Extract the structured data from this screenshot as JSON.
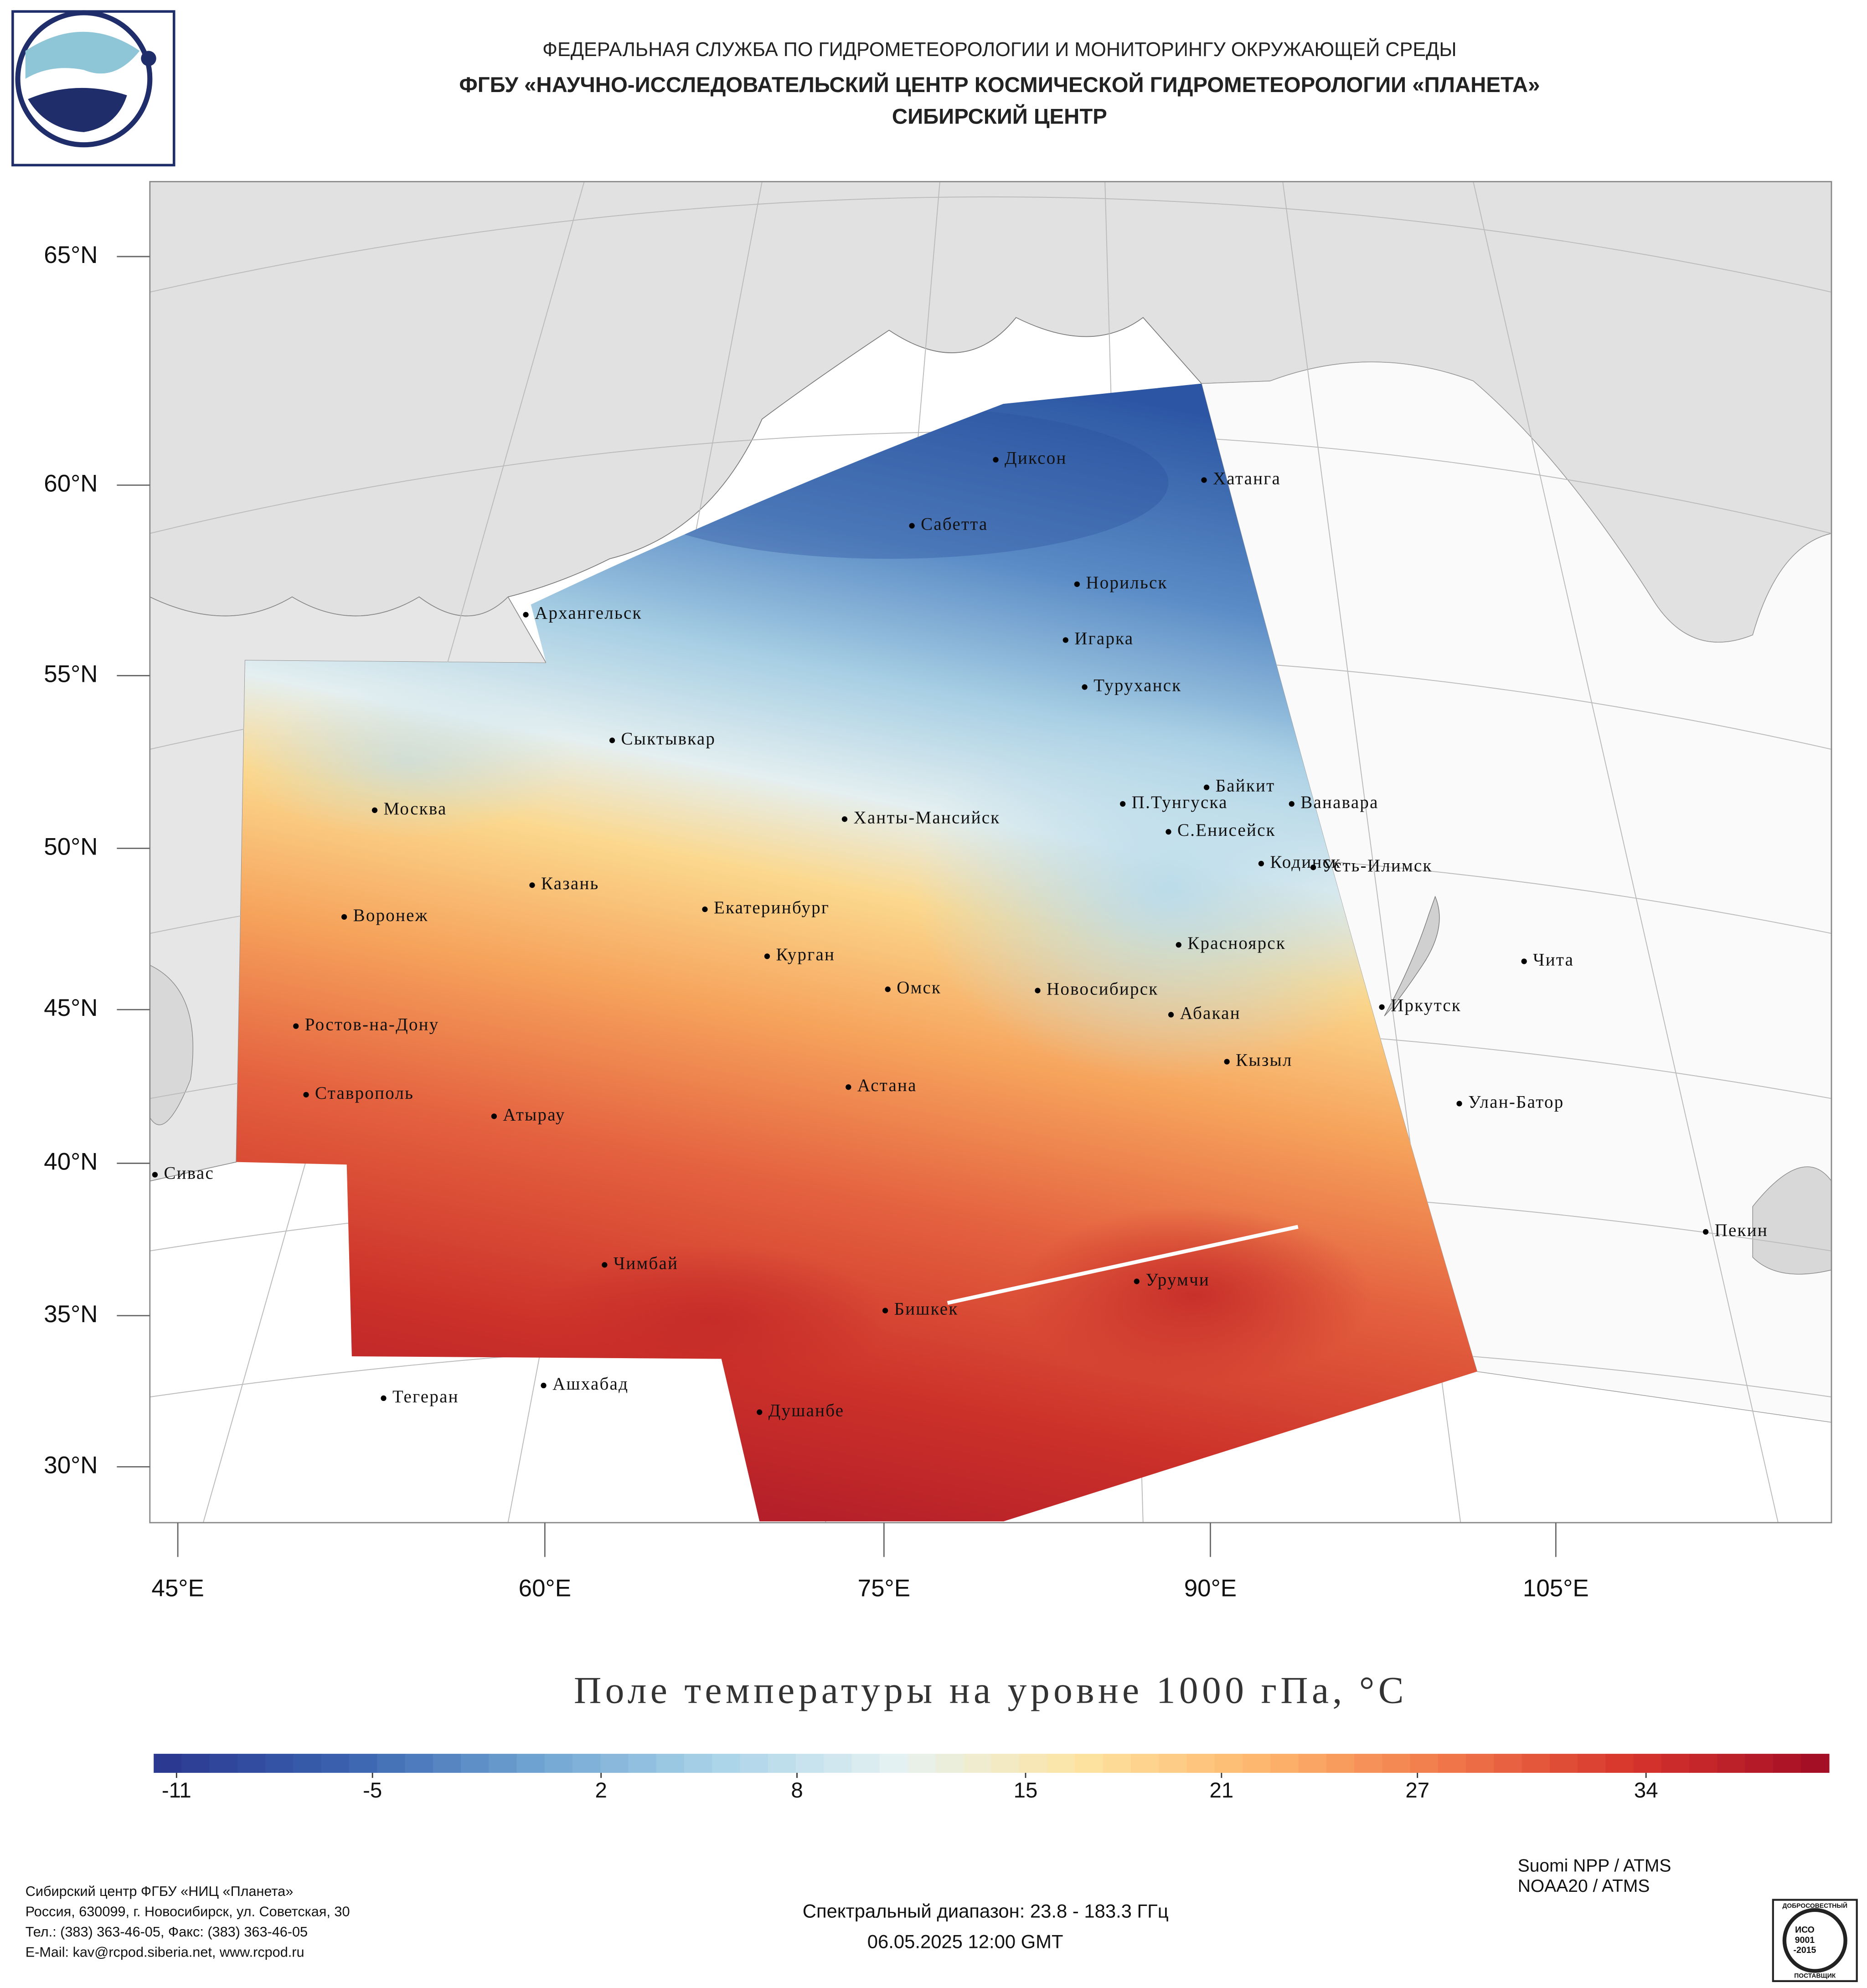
{
  "header": {
    "lines": [
      "ФЕДЕРАЛЬНАЯ СЛУЖБА ПО ГИДРОМЕТЕОРОЛОГИИ И МОНИТОРИНГУ ОКРУЖАЮЩЕЙ СРЕДЫ",
      "ФГБУ «НАУЧНО-ИССЛЕДОВАТЕЛЬСКИЙ ЦЕНТР КОСМИЧЕСКОЙ ГИДРОМЕТЕОРОЛОГИИ «ПЛАНЕТА»",
      "СИБИРСКИЙ ЦЕНТР"
    ]
  },
  "map": {
    "lat_labels": [
      "65°N",
      "60°N",
      "55°N",
      "50°N",
      "45°N",
      "40°N",
      "35°N",
      "30°N"
    ],
    "lon_labels": [
      "45°E",
      "60°E",
      "75°E",
      "90°E",
      "105°E"
    ],
    "cities": [
      "Диксон",
      "Хатанга",
      "Сабетта",
      "Архангельск",
      "Норильск",
      "Игарка",
      "Туруханск",
      "Сыктывкар",
      "Байкит",
      "Москва",
      "П.Тунгуска",
      "Ванавара",
      "Ханты-Мансийск",
      "С.Енисейск",
      "Кодинск",
      "Усть-Илимск",
      "Казань",
      "Екатеринбург",
      "Воронеж",
      "Красноярск",
      "Курган",
      "Чита",
      "Омск",
      "Новосибирск",
      "Иркутск",
      "Абакан",
      "Ростов-на-Дону",
      "Кызыл",
      "Астана",
      "Ставрополь",
      "Улан-Батор",
      "Атырау",
      "Сивас",
      "Пекин",
      "Чимбай",
      "Урумчи",
      "Бишкек",
      "Ашхабад",
      "Тегеран",
      "Душанбе"
    ]
  },
  "title": "Поле температуры на уровне 1000 гПа, °С",
  "colorbar": {
    "ticks": [
      -11,
      -5,
      2,
      8,
      15,
      21,
      27,
      34
    ],
    "range": [
      -11.7,
      39.6
    ],
    "colors": [
      "#2b3990",
      "#3b64b0",
      "#6fa3d2",
      "#a9d3e8",
      "#e6f2f2",
      "#fde3a0",
      "#fdb56b",
      "#f0774a",
      "#d7342b",
      "#a50f26"
    ]
  },
  "footer": {
    "address": [
      "Сибирский центр ФГБУ «НИЦ «Планета»",
      "Россия, 630099, г. Новосибирск, ул. Советская, 30",
      "Тел.: (383) 363-46-05, Факс: (383) 363-46-05",
      "E-Mail: kav@rcpod.siberia.net, www.rcpod.ru"
    ],
    "spectral": "Спектральный диапазон: 23.8 - 183.3 ГГц",
    "datetime": "06.05.2025 12:00 GMT",
    "satellites": [
      "Suomi NPP / ATMS",
      "NOAA20 / ATMS"
    ],
    "badge": [
      "ДОБРОСОВЕСТНЫЙ",
      "ИСО",
      "9001",
      "-2015",
      "ПОСТАВЩИК"
    ]
  }
}
